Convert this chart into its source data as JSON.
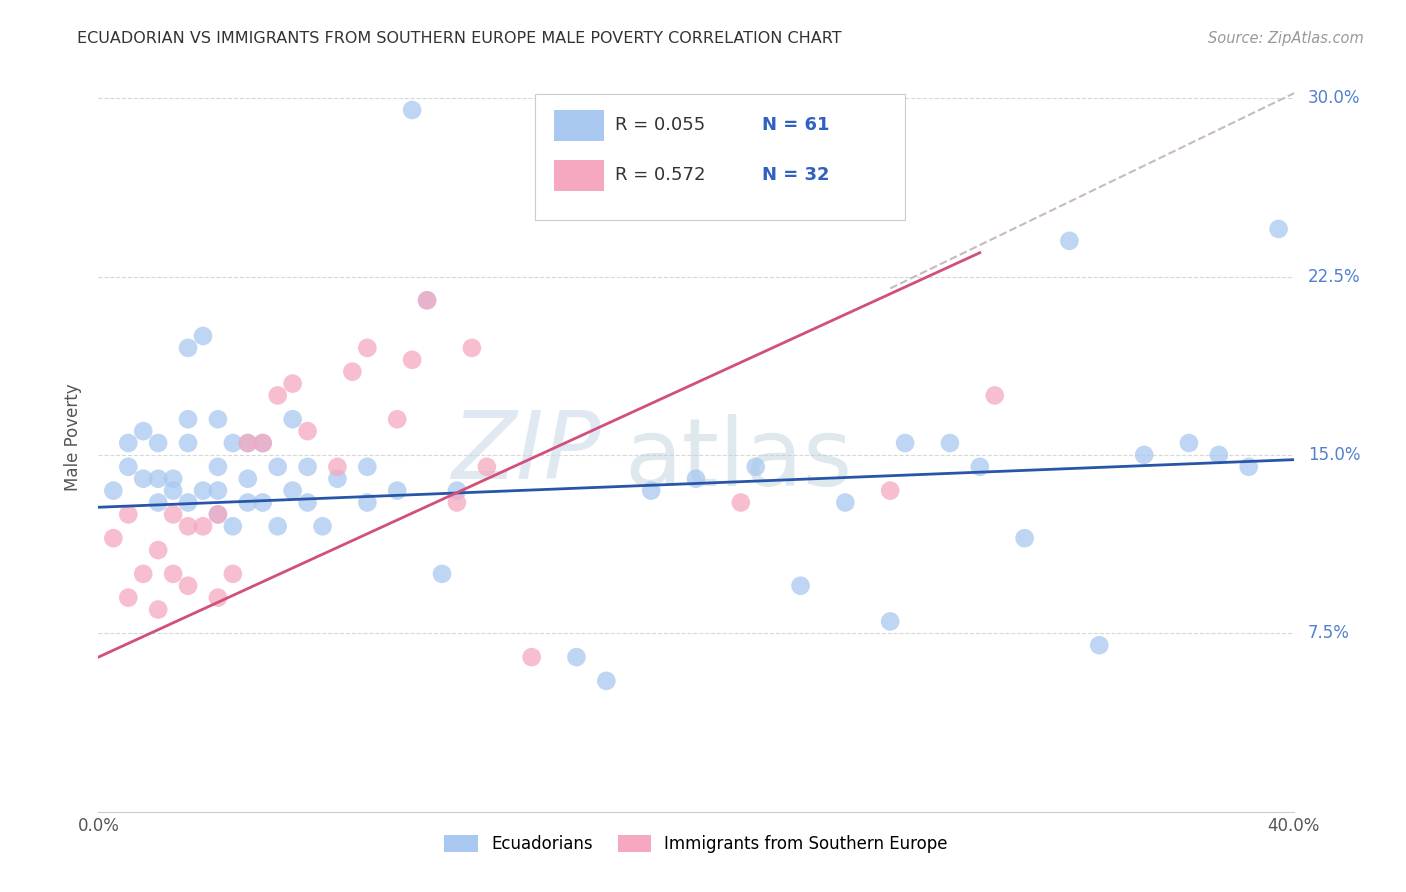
{
  "title": "ECUADORIAN VS IMMIGRANTS FROM SOUTHERN EUROPE MALE POVERTY CORRELATION CHART",
  "source": "Source: ZipAtlas.com",
  "ylabel": "Male Poverty",
  "yticks": [
    0.075,
    0.15,
    0.225,
    0.3
  ],
  "ytick_labels": [
    "7.5%",
    "15.0%",
    "22.5%",
    "30.0%"
  ],
  "xlim": [
    0.0,
    0.4
  ],
  "ylim": [
    0.0,
    0.315
  ],
  "watermark": "ZIPatlas",
  "legend_blue_r": "R = 0.055",
  "legend_blue_n": "N = 61",
  "legend_pink_r": "R = 0.572",
  "legend_pink_n": "N = 32",
  "legend_label_blue": "Ecuadorians",
  "legend_label_pink": "Immigrants from Southern Europe",
  "blue_color": "#a8c8f0",
  "pink_color": "#f5a8c0",
  "blue_line_color": "#2855a8",
  "pink_line_color": "#d0507a",
  "dash_line_color": "#c8b8c8",
  "blue_scatter_x": [
    0.005,
    0.01,
    0.01,
    0.015,
    0.015,
    0.02,
    0.02,
    0.02,
    0.025,
    0.025,
    0.03,
    0.03,
    0.03,
    0.03,
    0.035,
    0.035,
    0.04,
    0.04,
    0.04,
    0.04,
    0.045,
    0.045,
    0.05,
    0.05,
    0.05,
    0.055,
    0.055,
    0.06,
    0.06,
    0.065,
    0.065,
    0.07,
    0.07,
    0.075,
    0.08,
    0.09,
    0.09,
    0.1,
    0.105,
    0.11,
    0.115,
    0.12,
    0.16,
    0.17,
    0.185,
    0.2,
    0.22,
    0.235,
    0.25,
    0.265,
    0.27,
    0.285,
    0.295,
    0.31,
    0.325,
    0.335,
    0.35,
    0.365,
    0.375,
    0.385,
    0.395
  ],
  "blue_scatter_y": [
    0.135,
    0.145,
    0.155,
    0.14,
    0.16,
    0.13,
    0.14,
    0.155,
    0.135,
    0.14,
    0.13,
    0.155,
    0.165,
    0.195,
    0.135,
    0.2,
    0.125,
    0.135,
    0.145,
    0.165,
    0.12,
    0.155,
    0.13,
    0.14,
    0.155,
    0.13,
    0.155,
    0.12,
    0.145,
    0.135,
    0.165,
    0.13,
    0.145,
    0.12,
    0.14,
    0.13,
    0.145,
    0.135,
    0.295,
    0.215,
    0.1,
    0.135,
    0.065,
    0.055,
    0.135,
    0.14,
    0.145,
    0.095,
    0.13,
    0.08,
    0.155,
    0.155,
    0.145,
    0.115,
    0.24,
    0.07,
    0.15,
    0.155,
    0.15,
    0.145,
    0.245
  ],
  "pink_scatter_x": [
    0.005,
    0.01,
    0.01,
    0.015,
    0.02,
    0.02,
    0.025,
    0.025,
    0.03,
    0.03,
    0.035,
    0.04,
    0.04,
    0.045,
    0.05,
    0.055,
    0.06,
    0.065,
    0.07,
    0.08,
    0.085,
    0.09,
    0.1,
    0.105,
    0.11,
    0.12,
    0.125,
    0.13,
    0.145,
    0.215,
    0.265,
    0.3
  ],
  "pink_scatter_y": [
    0.115,
    0.09,
    0.125,
    0.1,
    0.11,
    0.085,
    0.1,
    0.125,
    0.095,
    0.12,
    0.12,
    0.09,
    0.125,
    0.1,
    0.155,
    0.155,
    0.175,
    0.18,
    0.16,
    0.145,
    0.185,
    0.195,
    0.165,
    0.19,
    0.215,
    0.13,
    0.195,
    0.145,
    0.065,
    0.13,
    0.135,
    0.175
  ],
  "blue_trend_x": [
    0.0,
    0.4
  ],
  "blue_trend_y": [
    0.128,
    0.148
  ],
  "pink_trend_x": [
    0.0,
    0.295
  ],
  "pink_trend_y": [
    0.065,
    0.235
  ],
  "dash_trend_x": [
    0.265,
    0.405
  ],
  "dash_trend_y": [
    0.22,
    0.305
  ],
  "background_color": "#ffffff",
  "grid_color": "#d8d8d8"
}
